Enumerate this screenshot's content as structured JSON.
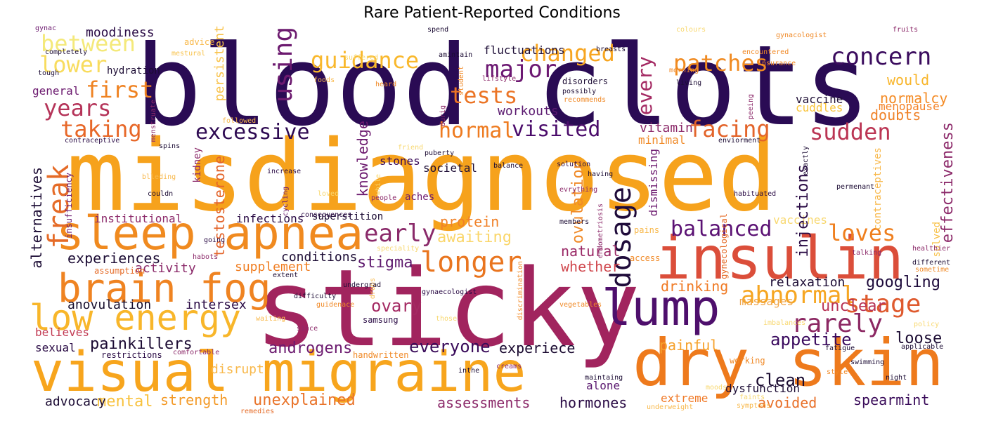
{
  "title": "Rare Patient-Reported Conditions",
  "words": [
    {
      "text": "blood clots",
      "color": "#2a0b54"
    },
    {
      "text": "misdiagnosed",
      "color": "#f6a21c"
    },
    {
      "text": "sticky",
      "color": "#a1245e"
    },
    {
      "text": "visual migraine",
      "color": "#f7a51d"
    },
    {
      "text": "dry skin",
      "color": "#ee7a1c"
    },
    {
      "text": "insulin",
      "color": "#db4e3a"
    },
    {
      "text": "sleep apnea",
      "color": "#f08a1f"
    },
    {
      "text": "brain fog",
      "color": "#ef8321"
    },
    {
      "text": "low energy",
      "color": "#f8b62a"
    },
    {
      "text": "lump",
      "color": "#4e0f6c"
    },
    {
      "text": "dosage",
      "color": "#1f0b3a"
    },
    {
      "text": "abnormal",
      "color": "#f6a622"
    },
    {
      "text": "stage",
      "color": "#df5a2e"
    },
    {
      "text": "rarely",
      "color": "#8c2863"
    },
    {
      "text": "longer",
      "color": "#e9751f"
    },
    {
      "text": "early",
      "color": "#8a2a6a"
    },
    {
      "text": "balanced",
      "color": "#5b1274"
    },
    {
      "text": "loves",
      "color": "#ef7f1e"
    },
    {
      "text": "excessive",
      "color": "#2e0a52"
    },
    {
      "text": "visited",
      "color": "#4b0c6b"
    },
    {
      "text": "facing",
      "color": "#e3642a"
    },
    {
      "text": "sudden",
      "color": "#bb3554"
    },
    {
      "text": "hormal",
      "color": "#ee7b20"
    },
    {
      "text": "taking",
      "color": "#e76728"
    },
    {
      "text": "years",
      "color": "#b53459"
    },
    {
      "text": "first",
      "color": "#ef8221"
    },
    {
      "text": "between",
      "color": "#f4e97a"
    },
    {
      "text": "lower",
      "color": "#f8dc5e"
    },
    {
      "text": "guidance",
      "color": "#f9b82c"
    },
    {
      "text": "changed",
      "color": "#f7a520"
    },
    {
      "text": "major",
      "color": "#6c1872"
    },
    {
      "text": "tests",
      "color": "#eb7425"
    },
    {
      "text": "patches",
      "color": "#f08a20"
    },
    {
      "text": "concern",
      "color": "#3b0c5e"
    },
    {
      "text": "would",
      "color": "#f8b52a"
    },
    {
      "text": "normalcy",
      "color": "#f48b25"
    },
    {
      "text": "doubts",
      "color": "#ef8228"
    },
    {
      "text": "cuddles",
      "color": "#f9c43a"
    },
    {
      "text": "menopause",
      "color": "#f48226"
    },
    {
      "text": "vaccine",
      "color": "#1e0e35"
    },
    {
      "text": "moodiness",
      "color": "#2a0b45"
    },
    {
      "text": "fluctuations",
      "color": "#1c0c35"
    },
    {
      "text": "workouts",
      "color": "#5b1a70"
    },
    {
      "text": "googling",
      "color": "#1e0b3b"
    },
    {
      "text": "painkillers",
      "color": "#1b0a32"
    },
    {
      "text": "anovulation",
      "color": "#140b2a"
    },
    {
      "text": "intersex",
      "color": "#2a0b45"
    },
    {
      "text": "androgens",
      "color": "#6c1a6f"
    },
    {
      "text": "ovary",
      "color": "#a42a63"
    },
    {
      "text": "everyone",
      "color": "#3a0c5a"
    },
    {
      "text": "experiece",
      "color": "#1a0a30"
    },
    {
      "text": "appetite",
      "color": "#3a0a5e"
    },
    {
      "text": "loose",
      "color": "#1b0b32"
    },
    {
      "text": "unclear",
      "color": "#b83456"
    },
    {
      "text": "painful",
      "color": "#f6a12a"
    },
    {
      "text": "clean",
      "color": "#1a0b30"
    },
    {
      "text": "experiences",
      "color": "#1c0c34"
    },
    {
      "text": "activity",
      "color": "#8b2a6a"
    },
    {
      "text": "supplement",
      "color": "#f07e22"
    },
    {
      "text": "stigma",
      "color": "#5e1a6e"
    },
    {
      "text": "whether",
      "color": "#d0474d"
    },
    {
      "text": "natural",
      "color": "#9a2966"
    },
    {
      "text": "protein",
      "color": "#f08128"
    },
    {
      "text": "awaiting",
      "color": "#fad66a"
    },
    {
      "text": "drinking",
      "color": "#f07a24"
    },
    {
      "text": "relaxation",
      "color": "#1c0c34"
    },
    {
      "text": "massages",
      "color": "#f0a64a"
    },
    {
      "text": "mental",
      "color": "#f8c23e"
    },
    {
      "text": "strength",
      "color": "#f39a28"
    },
    {
      "text": "unexplained",
      "color": "#e9742b"
    },
    {
      "text": "assessments",
      "color": "#8c2a6a"
    },
    {
      "text": "hormones",
      "color": "#2a0b45"
    },
    {
      "text": "avoided",
      "color": "#e86f28"
    },
    {
      "text": "spearmint",
      "color": "#3a0c5a"
    },
    {
      "text": "advocacy",
      "color": "#1c0c34"
    },
    {
      "text": "disrupt",
      "color": "#f8b84a"
    },
    {
      "text": "alone",
      "color": "#5b1a70"
    },
    {
      "text": "extreme",
      "color": "#f07a28"
    },
    {
      "text": "dysfunction",
      "color": "#1c0c34"
    },
    {
      "text": "sexual",
      "color": "#2a0b45"
    },
    {
      "text": "believes",
      "color": "#c23a52"
    },
    {
      "text": "general",
      "color": "#6c1a6f"
    },
    {
      "text": "conditions",
      "color": "#1c0c34"
    },
    {
      "text": "societal",
      "color": "#1c0c34"
    },
    {
      "text": "institutional",
      "color": "#8c2a6a"
    },
    {
      "text": "infections",
      "color": "#2a0b45"
    },
    {
      "text": "superstition",
      "color": "#1c0c34"
    },
    {
      "text": "stones",
      "color": "#3a0c5a"
    },
    {
      "text": "minimal",
      "color": "#f08a28"
    },
    {
      "text": "vitamin",
      "color": "#8c2a6a"
    },
    {
      "text": "vaccines",
      "color": "#f8d870"
    },
    {
      "text": "hydration",
      "color": "#1c0c34"
    },
    {
      "text": "freak",
      "color": "#e56b27"
    },
    {
      "text": "alternatives",
      "color": "#1c0c34"
    },
    {
      "text": "using",
      "color": "#6c1a6f"
    },
    {
      "text": "knowledge",
      "color": "#6c1a6f"
    },
    {
      "text": "ovulation",
      "color": "#f08a28"
    },
    {
      "text": "testosterone",
      "color": "#e3642a"
    },
    {
      "text": "kidney",
      "color": "#8c2a6a"
    },
    {
      "text": "persistent",
      "color": "#f8c24a"
    },
    {
      "text": "every",
      "color": "#a42a63"
    },
    {
      "text": "injections",
      "color": "#2a0b45"
    },
    {
      "text": "effectiveness",
      "color": "#8c2a6a"
    },
    {
      "text": "dismissing",
      "color": "#6c1a6f"
    },
    {
      "text": "solved",
      "color": "#f8c24a"
    },
    {
      "text": "advice",
      "color": "#f8b84a"
    },
    {
      "text": "mestural",
      "color": "#f8c24a"
    },
    {
      "text": "completely",
      "color": "#1c0c34"
    },
    {
      "text": "tough",
      "color": "#1c0c34"
    },
    {
      "text": "gynac",
      "color": "#6c1a6f"
    },
    {
      "text": "suffered",
      "color": "#f8d870"
    },
    {
      "text": "amintain",
      "color": "#1c0c34"
    },
    {
      "text": "spend",
      "color": "#1c0c34"
    },
    {
      "text": "breasts",
      "color": "#1c0c34"
    },
    {
      "text": "colours",
      "color": "#f8d870"
    },
    {
      "text": "gynacologist",
      "color": "#f08a28"
    },
    {
      "text": "fruits",
      "color": "#8c2a6a"
    },
    {
      "text": "encountered",
      "color": "#f08a28"
    },
    {
      "text": "insurance",
      "color": "#f08a28"
    },
    {
      "text": "morning",
      "color": "#f08a28"
    },
    {
      "text": "living",
      "color": "#1c0c34"
    },
    {
      "text": "recommends",
      "color": "#f08a28"
    },
    {
      "text": "possibly",
      "color": "#1c0c34"
    },
    {
      "text": "disorders",
      "color": "#1c0c34"
    },
    {
      "text": "lifstyle",
      "color": "#8c2a6a"
    },
    {
      "text": "heard",
      "color": "#f08a28"
    },
    {
      "text": "foods",
      "color": "#f8b84a"
    },
    {
      "text": "student",
      "color": "#f08a28"
    },
    {
      "text": "contraceptive",
      "color": "#2a0b45"
    },
    {
      "text": "spins",
      "color": "#1c0c34"
    },
    {
      "text": "followed",
      "color": "#f8b84a"
    },
    {
      "text": "friend",
      "color": "#f8d870"
    },
    {
      "text": "puberty",
      "color": "#1c0c34"
    },
    {
      "text": "balance",
      "color": "#1c0c34"
    },
    {
      "text": "solution",
      "color": "#2a0b45"
    },
    {
      "text": "enviorment",
      "color": "#1c0c34"
    },
    {
      "text": "exactly",
      "color": "#1c0c34"
    },
    {
      "text": "increase",
      "color": "#2a0b45"
    },
    {
      "text": "blleding",
      "color": "#f8b84a"
    },
    {
      "text": "couldn",
      "color": "#1c0c34"
    },
    {
      "text": "cycling",
      "color": "#6c1a6f"
    },
    {
      "text": "having",
      "color": "#1c0c34"
    },
    {
      "text": "evrything",
      "color": "#8c2a6a"
    },
    {
      "text": "habituated",
      "color": "#2a0b45"
    },
    {
      "text": "permenant",
      "color": "#1c0c34"
    },
    {
      "text": "loved",
      "color": "#f8d870"
    },
    {
      "text": "people",
      "color": "#8c2a6a"
    },
    {
      "text": "aches",
      "color": "#6c1a6f"
    },
    {
      "text": "consequences",
      "color": "#2a0b45"
    },
    {
      "text": "going",
      "color": "#2a0b45"
    },
    {
      "text": "members",
      "color": "#1c0c34"
    },
    {
      "text": "pains",
      "color": "#f8b84a"
    },
    {
      "text": "speciality",
      "color": "#f8d870"
    },
    {
      "text": "habots",
      "color": "#8c2a6a"
    },
    {
      "text": "assumption",
      "color": "#e56b27"
    },
    {
      "text": "access",
      "color": "#f08a28"
    },
    {
      "text": "talking",
      "color": "#8c2a6a"
    },
    {
      "text": "healthier",
      "color": "#8c2a6a"
    },
    {
      "text": "different",
      "color": "#1c0c34"
    },
    {
      "text": "sometime",
      "color": "#f08a28"
    },
    {
      "text": "extent",
      "color": "#1c0c34"
    },
    {
      "text": "drops",
      "color": "#f8b84a"
    },
    {
      "text": "gynaecologist",
      "color": "#2a0b45"
    },
    {
      "text": "undergrad",
      "color": "#1c0c34"
    },
    {
      "text": "difficulty",
      "color": "#1c0c34"
    },
    {
      "text": "guidenace",
      "color": "#f08a28"
    },
    {
      "text": "vegetables",
      "color": "#f08a28"
    },
    {
      "text": "waiting",
      "color": "#f8b84a"
    },
    {
      "text": "since",
      "color": "#8c2a6a"
    },
    {
      "text": "those",
      "color": "#f8d870"
    },
    {
      "text": "samsung",
      "color": "#2a0b45"
    },
    {
      "text": "imbalances",
      "color": "#f8d870"
    },
    {
      "text": "policy",
      "color": "#f8d870"
    },
    {
      "text": "fatigue",
      "color": "#1c0c34"
    },
    {
      "text": "applicable",
      "color": "#1c0c34"
    },
    {
      "text": "swimming",
      "color": "#1c0c34"
    },
    {
      "text": "style",
      "color": "#f08a28"
    },
    {
      "text": "night",
      "color": "#1c0c34"
    },
    {
      "text": "handwritten",
      "color": "#f08a28"
    },
    {
      "text": "creams",
      "color": "#8c2a6a"
    },
    {
      "text": "inthe",
      "color": "#1c0c34"
    },
    {
      "text": "restrictions",
      "color": "#2a0b45"
    },
    {
      "text": "comfortable",
      "color": "#8c2a6a"
    },
    {
      "text": "working",
      "color": "#f08a28"
    },
    {
      "text": "maintaing",
      "color": "#1c0c34"
    },
    {
      "text": "moods",
      "color": "#f8d870"
    },
    {
      "text": "faints",
      "color": "#f8d870"
    },
    {
      "text": "symptons",
      "color": "#f8b84a"
    },
    {
      "text": "underweight",
      "color": "#f8b84a"
    },
    {
      "text": "remedies",
      "color": "#e56b27"
    },
    {
      "text": "menstruate",
      "color": "#8c2a6a"
    },
    {
      "text": "insufficiency",
      "color": "#6c1a6f"
    },
    {
      "text": "durig",
      "color": "#8c2a6a"
    },
    {
      "text": "discrimination",
      "color": "#f08a28"
    },
    {
      "text": "endometriosis",
      "color": "#8c2a6a"
    },
    {
      "text": "gynecological",
      "color": "#e56b27"
    },
    {
      "text": "contraceptives",
      "color": "#f8b84a"
    },
    {
      "text": "while",
      "color": "#f8d870"
    },
    {
      "text": "peeing",
      "color": "#8c2a6a"
    }
  ]
}
